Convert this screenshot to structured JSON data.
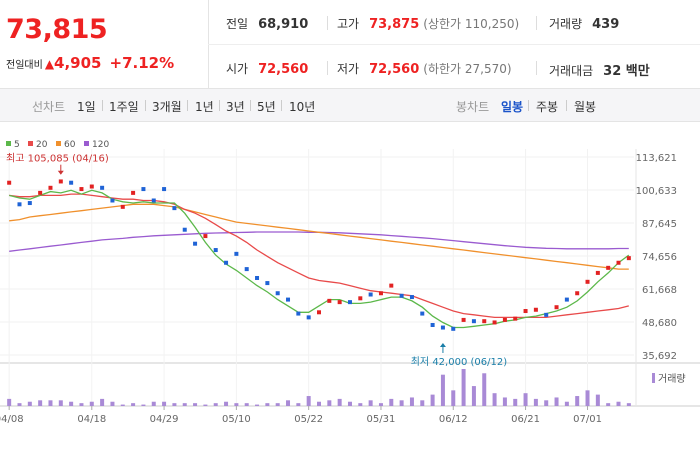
{
  "price": {
    "current": "73,815",
    "change_label": "전일대비",
    "change_arrow": "▲",
    "change_abs": "4,905",
    "change_pct": "+7.12%"
  },
  "stats": {
    "prev_close": {
      "label": "전일",
      "value": "68,910"
    },
    "high": {
      "label": "고가",
      "value": "73,875",
      "sub": "(상한가 110,250)"
    },
    "volume": {
      "label": "거래량",
      "value": "439"
    },
    "open": {
      "label": "시가",
      "value": "72,560"
    },
    "low": {
      "label": "저가",
      "value": "72,560",
      "sub": "(하한가 27,570)"
    },
    "amount": {
      "label": "거래대금",
      "value": "32 백만"
    }
  },
  "toolbar": {
    "line_label": "선차트",
    "line_tabs": [
      "1일",
      "1주일",
      "3개월",
      "1년",
      "3년",
      "5년",
      "10년"
    ],
    "candle_label": "봉차트",
    "candle_tabs": [
      "일봉",
      "주봉",
      "월봉"
    ],
    "active_candle": "일봉"
  },
  "colors": {
    "up": "#e22222",
    "down": "#1f63d6",
    "ma5": "#5cb84a",
    "ma20": "#e84a4a",
    "ma60": "#f0902c",
    "ma120": "#9a5bd0",
    "volume": "#a98ad6",
    "active_tab": "#1a53c9"
  },
  "chart_data": {
    "type": "candlestick",
    "legend": [
      {
        "name": "5",
        "color": "#5cb84a"
      },
      {
        "name": "20",
        "color": "#e84a4a"
      },
      {
        "name": "60",
        "color": "#f0902c"
      },
      {
        "name": "120",
        "color": "#9a5bd0"
      }
    ],
    "y_ticks": [
      "113,621",
      "100,633",
      "87,645",
      "74,656",
      "61,668",
      "48,680",
      "35,692"
    ],
    "y_tick_values": [
      113621,
      100633,
      87645,
      74656,
      61668,
      48680,
      35692
    ],
    "ylim": [
      35692,
      113621
    ],
    "x_ticks": [
      {
        "label": "04/08",
        "i": 0
      },
      {
        "label": "04/18",
        "i": 8
      },
      {
        "label": "04/29",
        "i": 15
      },
      {
        "label": "05/10",
        "i": 22
      },
      {
        "label": "05/22",
        "i": 29
      },
      {
        "label": "05/31",
        "i": 36
      },
      {
        "label": "06/12",
        "i": 43
      },
      {
        "label": "06/21",
        "i": 50
      },
      {
        "label": "07/01",
        "i": 56
      }
    ],
    "annotations": [
      {
        "text": "최고 105,085 (04/16)",
        "i": 5,
        "value": 105085,
        "position": "above"
      },
      {
        "text": "최저 42,000 (06/12)",
        "i": 42,
        "value": 42000,
        "position": "below"
      }
    ],
    "volume_label": "거래량",
    "close": [
      103500,
      95000,
      95500,
      99500,
      101500,
      104000,
      103500,
      101000,
      102000,
      101500,
      96500,
      94000,
      99500,
      101000,
      96500,
      101000,
      93500,
      85000,
      79500,
      82500,
      77000,
      72000,
      75500,
      69500,
      66000,
      64000,
      60000,
      57500,
      52000,
      50500,
      52500,
      57000,
      56500,
      56500,
      58000,
      59500,
      60000,
      63000,
      59000,
      58500,
      52000,
      47500,
      46500,
      46000,
      49500,
      49000,
      49000,
      48500,
      49500,
      50000,
      53000,
      53500,
      51500,
      54500,
      57500,
      60000,
      64500,
      68000,
      70000,
      72000,
      73815
    ],
    "ma5": [
      98500,
      97500,
      97000,
      98500,
      100000,
      99500,
      100500,
      99000,
      100500,
      99500,
      97000,
      96000,
      95500,
      96000,
      95500,
      95500,
      95500,
      91500,
      86000,
      80000,
      75000,
      71500,
      69000,
      66000,
      63000,
      60500,
      57500,
      55000,
      52500,
      52500,
      55000,
      57500,
      57500,
      56000,
      56000,
      56500,
      57500,
      58500,
      58500,
      57000,
      54500,
      51000,
      48500,
      46500,
      46500,
      47000,
      47500,
      48000,
      49000,
      49500,
      50500,
      51000,
      52000,
      53000,
      54500,
      57000,
      60500,
      64500,
      68000,
      72000,
      75000
    ],
    "ma20": [
      98500,
      98000,
      98000,
      98500,
      98500,
      98500,
      99000,
      99000,
      98500,
      98000,
      97500,
      97000,
      97000,
      96500,
      96500,
      96000,
      95000,
      93000,
      91500,
      89500,
      87000,
      84500,
      82500,
      80000,
      77000,
      74500,
      72000,
      70000,
      68000,
      66000,
      65000,
      64500,
      64000,
      63000,
      62000,
      61000,
      60500,
      60000,
      59500,
      59000,
      57500,
      56000,
      54500,
      53000,
      52000,
      51500,
      51000,
      50500,
      50500,
      50500,
      50500,
      50500,
      50500,
      51000,
      51500,
      52000,
      52500,
      53000,
      53500,
      54000,
      55000
    ],
    "ma60": [
      88500,
      89000,
      90000,
      90500,
      91000,
      91500,
      92000,
      92500,
      93000,
      93500,
      94000,
      94500,
      95000,
      95000,
      95000,
      94500,
      94000,
      93000,
      92000,
      91000,
      90000,
      89000,
      88000,
      87500,
      87000,
      86500,
      86000,
      85500,
      85000,
      84500,
      84000,
      83500,
      83000,
      82500,
      82000,
      81500,
      81000,
      80500,
      80000,
      79500,
      79000,
      78500,
      78000,
      77500,
      77000,
      76500,
      76000,
      75500,
      75000,
      74500,
      74000,
      73500,
      73000,
      72500,
      72000,
      71500,
      71000,
      70500,
      70000,
      69500,
      69500
    ],
    "ma120": [
      76500,
      77000,
      77500,
      78000,
      78500,
      79000,
      79500,
      80000,
      80500,
      81000,
      81300,
      81600,
      82000,
      82300,
      82600,
      82800,
      83000,
      83200,
      83400,
      83600,
      83700,
      83800,
      83900,
      84000,
      84100,
      84100,
      84100,
      84100,
      84100,
      84000,
      84000,
      83900,
      83800,
      83600,
      83400,
      83200,
      83000,
      82700,
      82400,
      82100,
      81800,
      81500,
      81100,
      80700,
      80300,
      79900,
      79500,
      79100,
      78700,
      78400,
      78100,
      77900,
      77700,
      77600,
      77500,
      77500,
      77500,
      77500,
      77500,
      77600,
      77600
    ],
    "direction": [
      "u",
      "d",
      "d",
      "u",
      "u",
      "u",
      "d",
      "u",
      "u",
      "d",
      "d",
      "u",
      "u",
      "d",
      "d",
      "d",
      "d",
      "d",
      "d",
      "u",
      "d",
      "d",
      "d",
      "d",
      "d",
      "d",
      "d",
      "d",
      "d",
      "d",
      "u",
      "u",
      "u",
      "d",
      "u",
      "d",
      "u",
      "u",
      "d",
      "d",
      "d",
      "d",
      "d",
      "d",
      "u",
      "d",
      "u",
      "u",
      "u",
      "u",
      "u",
      "u",
      "d",
      "u",
      "d",
      "u",
      "u",
      "u",
      "u",
      "u",
      "u"
    ],
    "volume": [
      5,
      2,
      3,
      4,
      4,
      4,
      3,
      2,
      3,
      5,
      3,
      1,
      2,
      1,
      3,
      3,
      2,
      2,
      2,
      1,
      2,
      3,
      2,
      2,
      1,
      2,
      2,
      4,
      2,
      7,
      3,
      4,
      5,
      3,
      2,
      4,
      2,
      5,
      4,
      6,
      4,
      8,
      22,
      11,
      26,
      14,
      23,
      9,
      6,
      5,
      9,
      5,
      4,
      6,
      3,
      7,
      11,
      8,
      2,
      3,
      2
    ]
  }
}
